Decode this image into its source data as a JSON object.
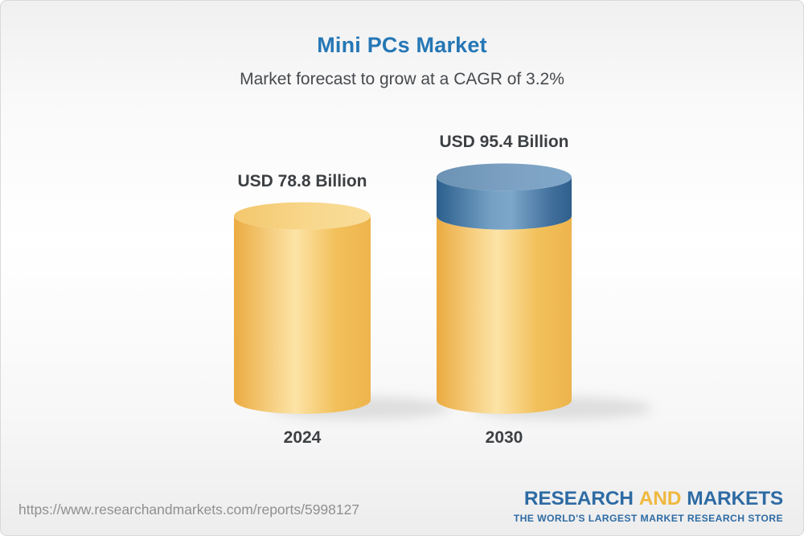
{
  "header": {
    "title": "Mini PCs Market",
    "subtitle": "Market forecast to grow at a CAGR of 3.2%"
  },
  "chart_data": {
    "type": "bar",
    "variant": "3d-cylinder",
    "title": "Mini PCs Market",
    "subtitle": "Market forecast to grow at a CAGR of 3.2%",
    "unit": "USD Billion",
    "cagr_pct": 3.2,
    "categories": [
      "2024",
      "2030"
    ],
    "totals": [
      78.8,
      95.4
    ],
    "value_labels": [
      "USD 78.8 Billion",
      "USD 95.4 Billion"
    ],
    "series": [
      {
        "name": "2024 base market value",
        "color": "#f5c864",
        "values": [
          78.8,
          78.8
        ]
      },
      {
        "name": "Forecast growth to 2030",
        "color": "#4a7ba6",
        "values": [
          0,
          16.6
        ]
      }
    ],
    "axes_visible": false,
    "grid": false,
    "legend": "none",
    "ylim": [
      0,
      100
    ]
  },
  "footer": {
    "url": "https://www.researchandmarkets.com/reports/5998127",
    "logo": {
      "part1": "RESEARCH",
      "part2": "AND",
      "part3": "MARKETS",
      "tagline": "THE WORLD'S LARGEST MARKET RESEARCH STORE"
    }
  },
  "colors": {
    "title_blue": "#2577b5",
    "subtitle_gray": "#474a4d",
    "label_dark": "#3d4043",
    "url_gray": "#909090",
    "logo_blue": "#2e6ba3",
    "logo_gold": "#efb83e",
    "cylinder_yellow": "#f5c864",
    "cylinder_blue": "#4a7ba6"
  }
}
